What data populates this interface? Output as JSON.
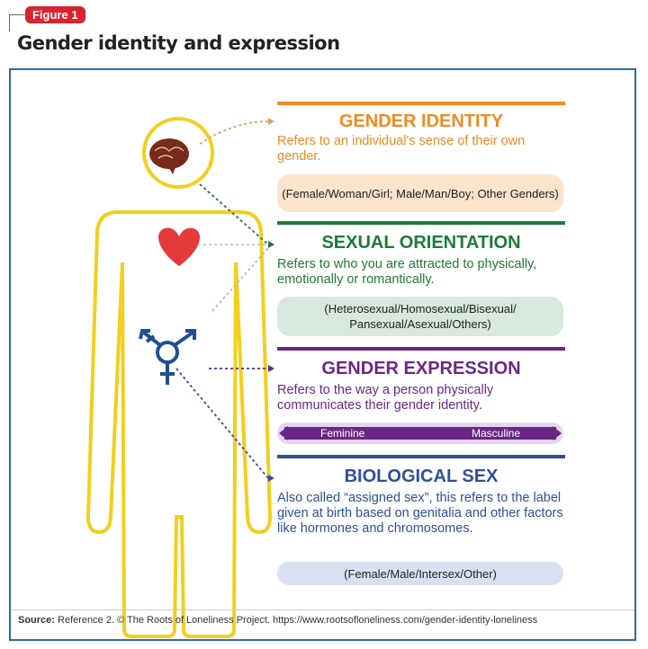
{
  "figure_label": "Figure 1",
  "title": "Gender identity and expression",
  "sections": [
    {
      "title": "GENDER IDENTITY",
      "description": "Refers to an individual's sense of their own gender.",
      "examples": "(Female/Woman/Girl; Male/Man/Boy; Other Genders)",
      "color": "#f08a24",
      "pill_color": "#fbe3cc"
    },
    {
      "title": "SEXUAL ORIENTATION",
      "description": "Refers to who you are attracted to physically, emotionally or romantically.",
      "examples": "(Heterosexual/Homosexual/Bisexual/ Pansexual/Asexual/Others)",
      "color": "#1f7a3a",
      "pill_color": "#d7e8dc"
    },
    {
      "title": "GENDER EXPRESSION",
      "description": "Refers to the way a person physically communicates their gender identity.",
      "scale_left": "Feminine",
      "scale_right": "Masculine",
      "color": "#6a2787",
      "pill_color": "#e6d6ec"
    },
    {
      "title": "BIOLOGICAL SEX",
      "description": "Also called “assigned sex”, this refers to the label given at birth based on genitalia and other factors like hormones and chromosomes.",
      "examples": "(Female/Male/Intersex/Other)",
      "color": "#2f4f9a",
      "pill_color": "#d9e1f1"
    }
  ],
  "source_label": "Source:",
  "source_text": " Reference 2. © The Roots of Loneliness Project. https://www.rootsofloneliness.com/gender-identity-loneliness",
  "colors": {
    "body_outline": "#f2cf1e",
    "heart": "#e53a3a",
    "brain": "#7a2a1a",
    "symbol": "#1f4f8f",
    "frame": "#2e6aa6",
    "badge": "#d9232e"
  }
}
